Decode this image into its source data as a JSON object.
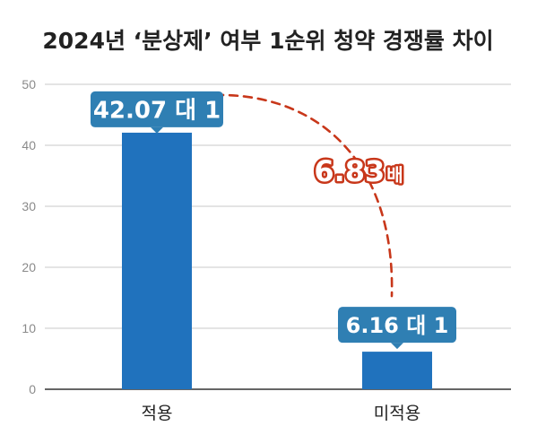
{
  "chart_data": {
    "type": "bar",
    "title": "2024년 ‘분상제’ 여부 1순위 청약 경쟁률 차이",
    "categories": [
      "적용",
      "미적용"
    ],
    "values": [
      42.07,
      6.16
    ],
    "data_labels": [
      "42.07 대 1",
      "6.16 대 1"
    ],
    "ylim": [
      0,
      50
    ],
    "yticks": [
      0,
      10,
      20,
      30,
      40,
      50
    ],
    "grid": true,
    "legend": "none",
    "annotation": {
      "value": "6.83",
      "unit": "배"
    },
    "colors": {
      "bar": "#2072bd",
      "label_box": "#2f7fb3",
      "annotation": "#c8371a",
      "grid": "#d4d4d4",
      "axis": "#333333"
    }
  }
}
